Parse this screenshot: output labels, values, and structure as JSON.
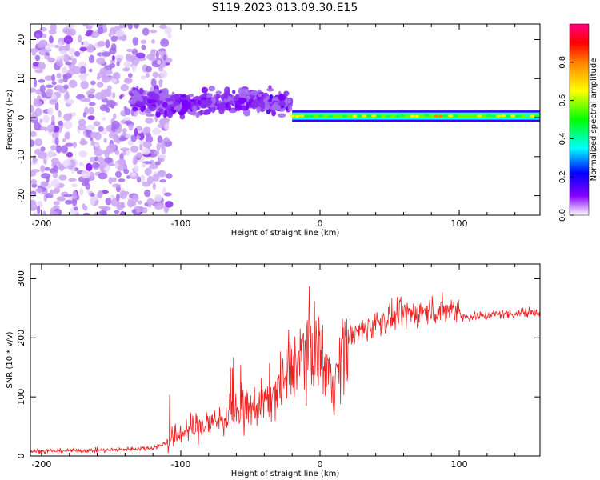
{
  "title": "S119.2023.013.09.30.E15",
  "chart_data": [
    {
      "type": "heatmap",
      "xlabel": "Height of straight line (km)",
      "ylabel": "Frequency (Hz)",
      "xlim": [
        -208,
        158
      ],
      "ylim": [
        -25,
        24
      ],
      "xticks": [
        -200,
        -100,
        0,
        100
      ],
      "xtick_labels": [
        "-200",
        "-100",
        "0",
        "100"
      ],
      "yticks": [
        -20,
        -10,
        0,
        10,
        20
      ],
      "ytick_labels": [
        "-20",
        "-10",
        "0",
        "10",
        "20"
      ],
      "colorbar": {
        "label": "Normalized spectral amplitude",
        "range": [
          0,
          1
        ],
        "ticks": [
          0.0,
          0.2,
          0.4,
          0.6,
          0.8
        ],
        "tick_labels": [
          "0.0",
          "0.2",
          "0.4",
          "0.6",
          "0.8"
        ]
      },
      "features": [
        {
          "region": "noise",
          "x_range": [
            -208,
            -108
          ],
          "freq_range": [
            -25,
            24
          ],
          "amplitude": 0.1
        },
        {
          "region": "broadband",
          "x_range": [
            -135,
            -20
          ],
          "freq_center": 2.5,
          "freq_spread": 4.5,
          "amplitude": 0.3
        },
        {
          "region": "line",
          "x_range": [
            -20,
            158
          ],
          "freq_center": 0.4,
          "freq_spread": 1.2,
          "amplitude": 0.85
        }
      ]
    },
    {
      "type": "line",
      "xlabel": "Height of straight line (km)",
      "ylabel": "SNR (10 * v/v)",
      "xlim": [
        -208,
        158
      ],
      "ylim": [
        0,
        325
      ],
      "xticks": [
        -200,
        -100,
        0,
        100
      ],
      "xtick_labels": [
        "-200",
        "-100",
        "0",
        "100"
      ],
      "yticks": [
        0,
        100,
        200,
        300
      ],
      "ytick_labels": [
        "0",
        "100",
        "200",
        "300"
      ],
      "series": [
        {
          "color": "#ee2222",
          "x": [
            -208,
            -180,
            -150,
            -120,
            -110,
            -100,
            -80,
            -60,
            -40,
            -25,
            -15,
            -10,
            0,
            10,
            12,
            20,
            40,
            60,
            80,
            100,
            102,
            130,
            158
          ],
          "y": [
            8,
            9,
            10,
            14,
            22,
            40,
            55,
            70,
            90,
            130,
            165,
            185,
            180,
            120,
            140,
            200,
            225,
            240,
            245,
            250,
            235,
            240,
            245
          ]
        }
      ]
    }
  ]
}
